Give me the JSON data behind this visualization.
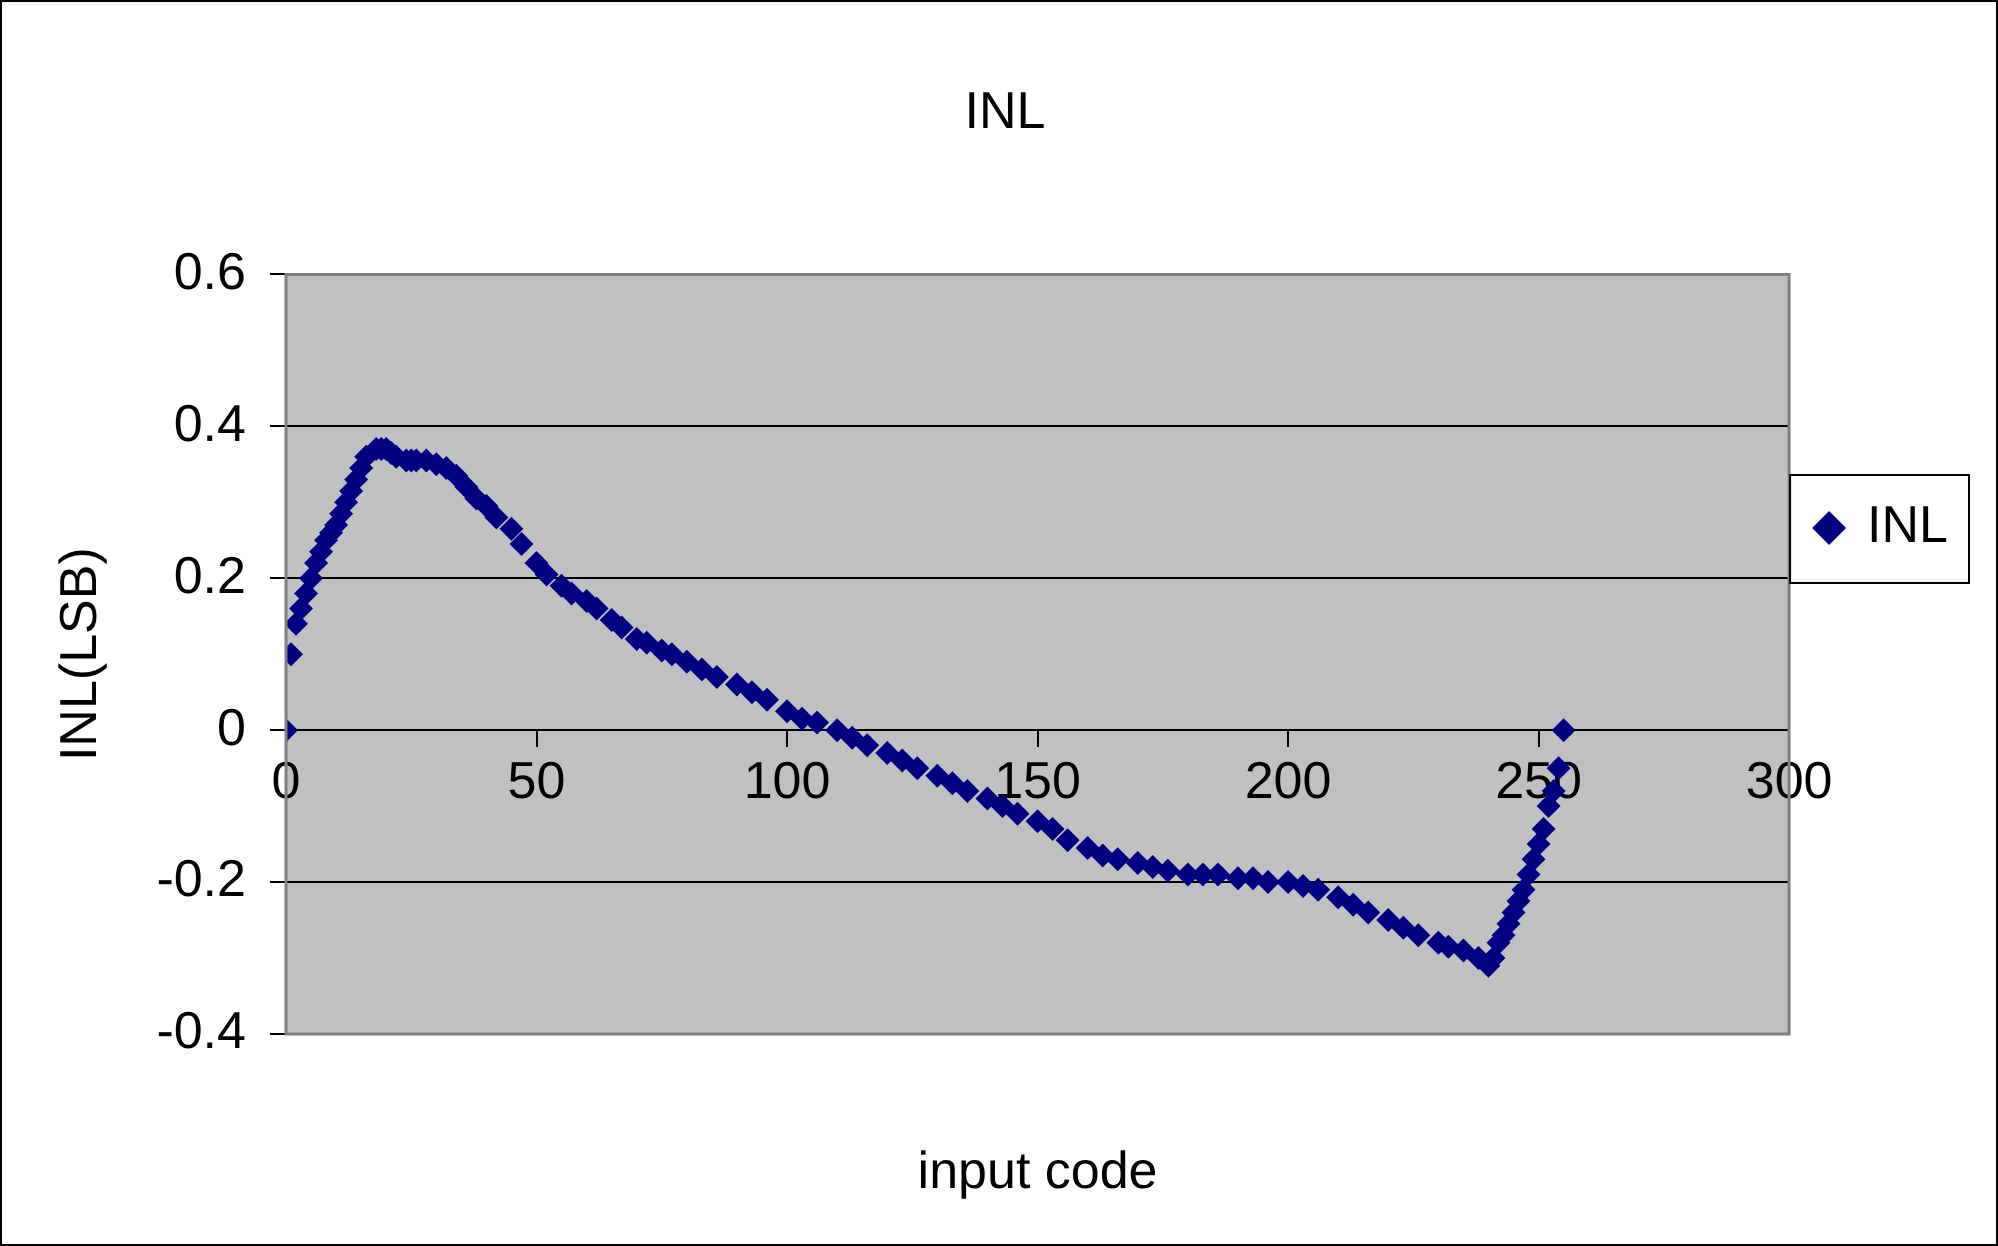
{
  "chart_data": {
    "type": "scatter",
    "title": "INL",
    "xlabel": "input code",
    "ylabel": "INL(LSB)",
    "x": [
      0,
      1,
      2,
      3,
      4,
      5,
      6,
      7,
      8,
      9,
      10,
      11,
      12,
      13,
      14,
      15,
      16,
      18,
      19,
      20,
      21,
      22,
      24,
      25,
      26,
      28,
      30,
      32,
      34,
      36,
      38,
      40,
      42,
      45,
      47,
      50,
      52,
      55,
      57,
      60,
      62,
      65,
      67,
      70,
      72,
      75,
      77,
      80,
      83,
      86,
      90,
      93,
      96,
      100,
      103,
      106,
      110,
      113,
      116,
      120,
      123,
      126,
      130,
      133,
      136,
      140,
      143,
      146,
      150,
      153,
      156,
      160,
      163,
      166,
      170,
      173,
      176,
      180,
      183,
      186,
      190,
      193,
      196,
      200,
      203,
      206,
      210,
      213,
      216,
      220,
      223,
      226,
      230,
      232,
      235,
      238,
      240,
      241,
      242,
      243,
      244,
      245,
      246,
      247,
      248,
      249,
      250,
      251,
      252,
      253,
      254,
      255
    ],
    "series": [
      {
        "name": "INL",
        "color": "#000080",
        "values": [
          0,
          0.1,
          0.14,
          0.16,
          0.18,
          0.2,
          0.22,
          0.235,
          0.25,
          0.26,
          0.27,
          0.285,
          0.3,
          0.315,
          0.33,
          0.345,
          0.36,
          0.37,
          0.37,
          0.37,
          0.365,
          0.36,
          0.355,
          0.355,
          0.355,
          0.355,
          0.35,
          0.345,
          0.335,
          0.32,
          0.305,
          0.295,
          0.28,
          0.265,
          0.245,
          0.22,
          0.205,
          0.19,
          0.18,
          0.17,
          0.16,
          0.145,
          0.135,
          0.12,
          0.115,
          0.105,
          0.1,
          0.09,
          0.08,
          0.07,
          0.06,
          0.05,
          0.04,
          0.025,
          0.015,
          0.01,
          0,
          -0.01,
          -0.02,
          -0.03,
          -0.04,
          -0.05,
          -0.06,
          -0.07,
          -0.08,
          -0.09,
          -0.1,
          -0.11,
          -0.12,
          -0.13,
          -0.145,
          -0.155,
          -0.165,
          -0.17,
          -0.175,
          -0.18,
          -0.185,
          -0.19,
          -0.19,
          -0.19,
          -0.195,
          -0.195,
          -0.2,
          -0.2,
          -0.205,
          -0.21,
          -0.22,
          -0.23,
          -0.24,
          -0.25,
          -0.26,
          -0.27,
          -0.28,
          -0.285,
          -0.29,
          -0.3,
          -0.31,
          -0.3,
          -0.28,
          -0.27,
          -0.255,
          -0.24,
          -0.225,
          -0.21,
          -0.19,
          -0.17,
          -0.15,
          -0.13,
          -0.1,
          -0.08,
          -0.05,
          0
        ]
      }
    ],
    "xlim": [
      0,
      300
    ],
    "xticks": [
      0,
      50,
      100,
      150,
      200,
      250,
      300
    ],
    "ylim": [
      -0.4,
      0.6
    ],
    "yticks": [
      -0.4,
      -0.2,
      0,
      0.2,
      0.4,
      0.6
    ],
    "grid": "y",
    "legend": "right",
    "marker": "diamond"
  }
}
